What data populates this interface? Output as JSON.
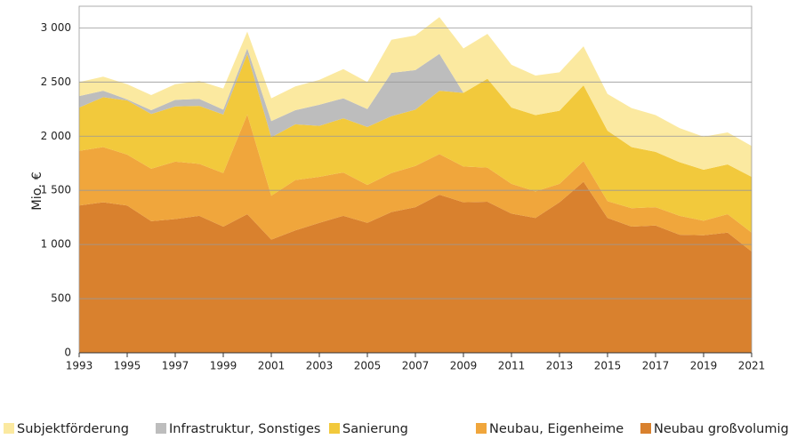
{
  "chart_data": {
    "type": "stacked-area",
    "y_label": "Mio. €",
    "x": [
      1993,
      1994,
      1995,
      1996,
      1997,
      1998,
      1999,
      2000,
      2001,
      2002,
      2003,
      2004,
      2005,
      2006,
      2007,
      2008,
      2009,
      2010,
      2011,
      2012,
      2013,
      2014,
      2015,
      2016,
      2017,
      2018,
      2019,
      2020,
      2021
    ],
    "xlim": [
      1993,
      2021
    ],
    "xticks": [
      1993,
      1995,
      1997,
      1999,
      2001,
      2003,
      2005,
      2007,
      2009,
      2011,
      2013,
      2015,
      2017,
      2019,
      2021
    ],
    "ylim": [
      0,
      3200
    ],
    "yticks": [
      0,
      500,
      {
        "value": 1000,
        "label": "1 000"
      },
      {
        "value": 1500,
        "label": "1 500"
      },
      {
        "value": 2000,
        "label": "2 000"
      },
      {
        "value": 2500,
        "label": "2 500"
      },
      {
        "value": 3000,
        "label": "3 000"
      }
    ],
    "grid": true,
    "legend": "bottom",
    "series": [
      {
        "name": "Subjektförderung",
        "color": "#fbe9a0",
        "values": [
          130,
          130,
          140,
          140,
          145,
          165,
          195,
          155,
          210,
          220,
          230,
          270,
          250,
          305,
          320,
          340,
          410,
          415,
          395,
          365,
          355,
          360,
          340,
          360,
          340,
          315,
          305,
          295,
          285
        ]
      },
      {
        "name": "Infrastruktur, Sonstiges",
        "color": "#bdbdbd",
        "values": [
          105,
          60,
          10,
          35,
          60,
          65,
          45,
          50,
          150,
          130,
          195,
          185,
          165,
          400,
          365,
          340,
          0,
          0,
          0,
          0,
          0,
          0,
          0,
          0,
          0,
          0,
          0,
          0,
          0
        ]
      },
      {
        "name": "Sanierung",
        "color": "#f2c93c",
        "values": [
          400,
          460,
          500,
          505,
          510,
          535,
          540,
          560,
          540,
          515,
          470,
          500,
          535,
          525,
          520,
          585,
          680,
          820,
          705,
          705,
          675,
          700,
          650,
          565,
          510,
          495,
          470,
          460,
          515
        ]
      },
      {
        "name": "Neubau, Eigenheime",
        "color": "#f0a63c",
        "values": [
          505,
          510,
          470,
          485,
          530,
          480,
          495,
          920,
          405,
          465,
          425,
          400,
          350,
          360,
          380,
          375,
          330,
          315,
          275,
          245,
          170,
          190,
          155,
          170,
          170,
          175,
          135,
          170,
          175
        ]
      },
      {
        "name": "Neubau großvolumig",
        "color": "#d9812e",
        "values": [
          1360,
          1390,
          1360,
          1215,
          1235,
          1265,
          1165,
          1280,
          1045,
          1130,
          1200,
          1265,
          1200,
          1300,
          1345,
          1460,
          1390,
          1395,
          1285,
          1245,
          1390,
          1580,
          1245,
          1165,
          1175,
          1090,
          1085,
          1110,
          935
        ]
      }
    ]
  }
}
